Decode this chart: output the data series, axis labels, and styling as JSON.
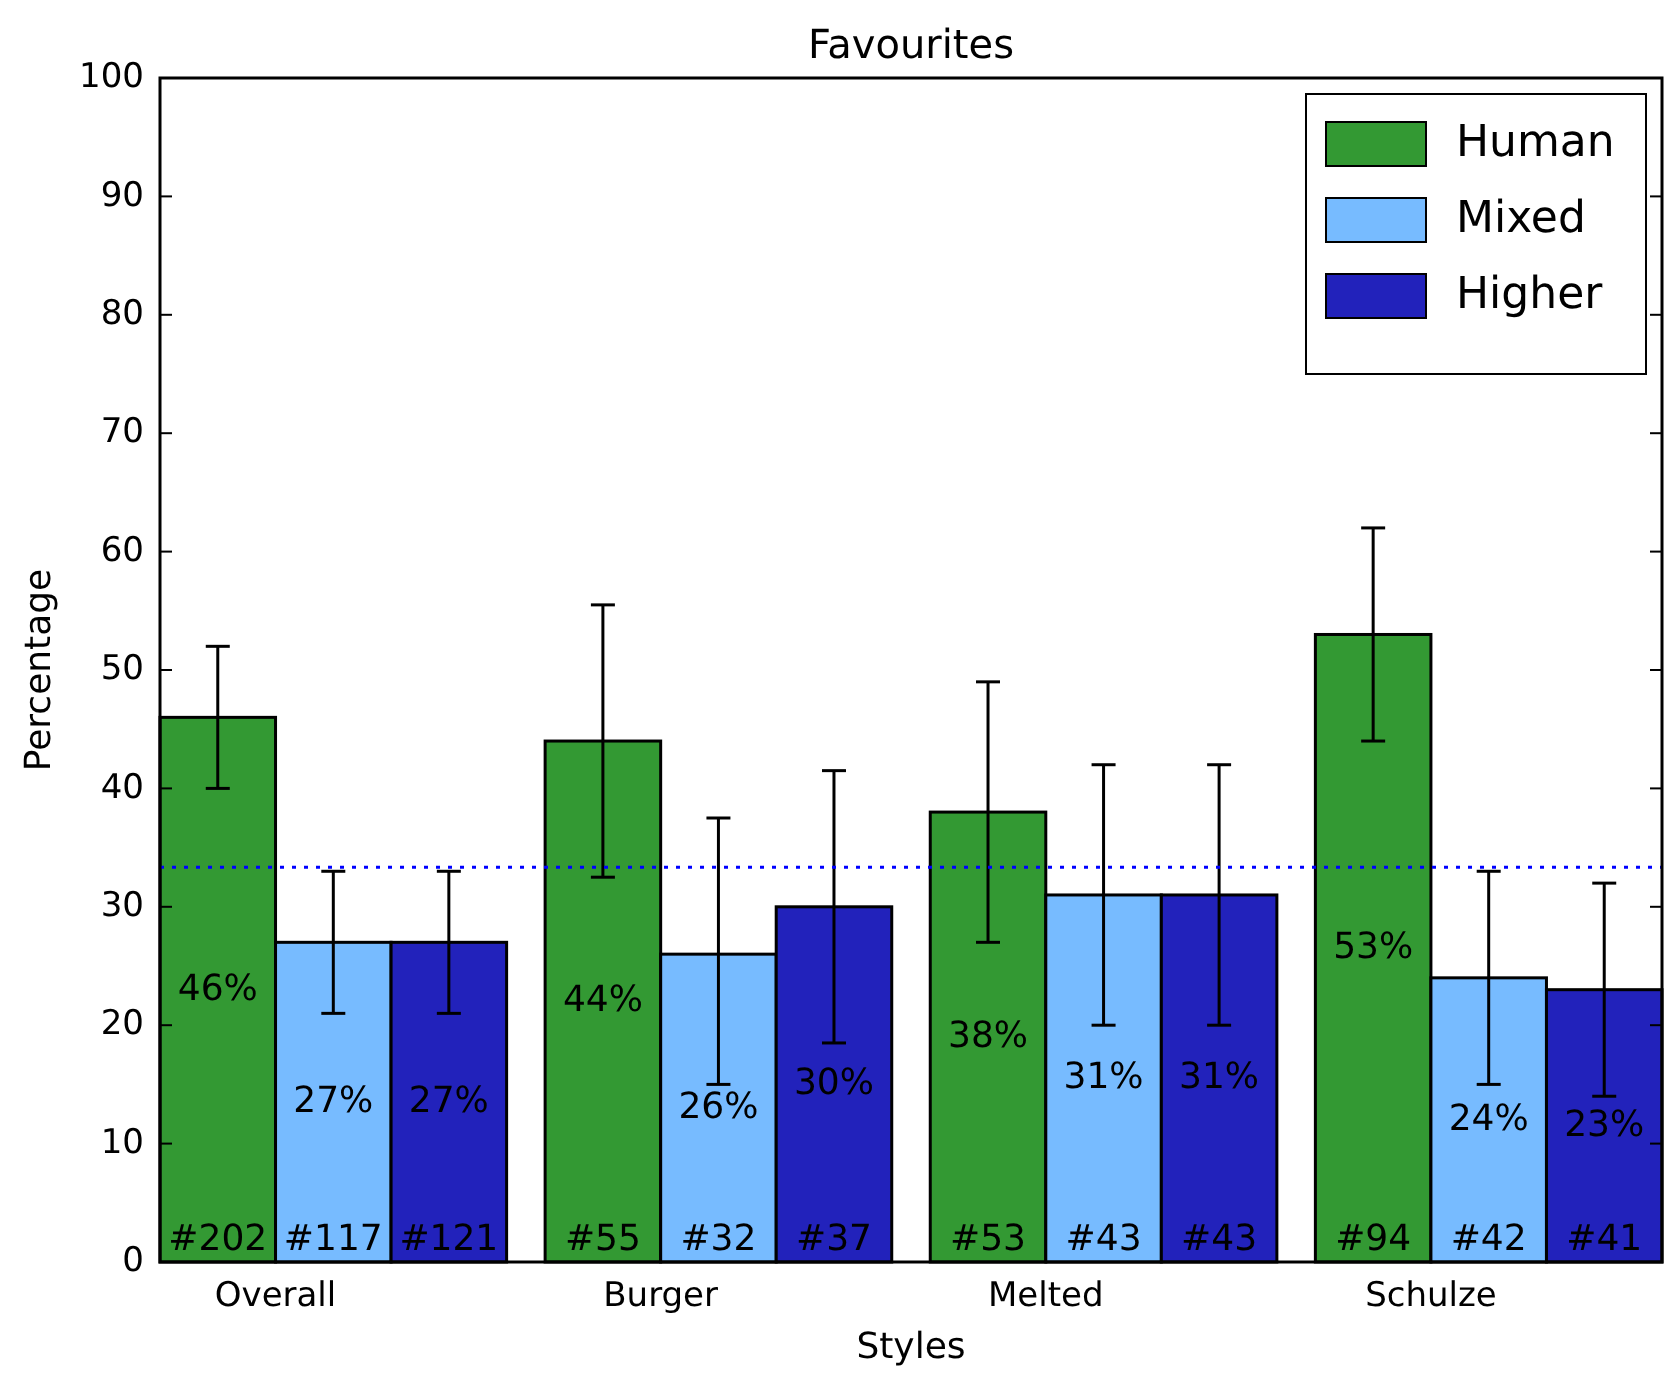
{
  "chart_data": {
    "type": "bar",
    "title": "Favourites",
    "xlabel": "Styles",
    "ylabel": "Percentage",
    "categories": [
      "Overall",
      "Burger",
      "Melted",
      "Schulze"
    ],
    "series": [
      {
        "name": "Human",
        "color": "#339933",
        "values": [
          46,
          44,
          38,
          53
        ],
        "errors": [
          [
            40,
            52
          ],
          [
            32.5,
            55.5
          ],
          [
            27,
            49
          ],
          [
            44,
            62
          ]
        ],
        "value_labels": [
          "46%",
          "44%",
          "38%",
          "53%"
        ]
      },
      {
        "name": "Mixed",
        "color": "#77bbff",
        "values": [
          27,
          26,
          31,
          24
        ],
        "errors": [
          [
            21,
            33
          ],
          [
            15,
            37.5
          ],
          [
            20,
            42
          ],
          [
            15,
            33
          ]
        ],
        "value_labels": [
          "27%",
          "26%",
          "31%",
          "24%"
        ]
      },
      {
        "name": "Higher",
        "color": "#2222bb",
        "values": [
          27,
          30,
          31,
          23
        ],
        "errors": [
          [
            21,
            33
          ],
          [
            18.5,
            41.5
          ],
          [
            20,
            42
          ],
          [
            14,
            32
          ]
        ],
        "value_labels": [
          "27%",
          "30%",
          "31%",
          "23%"
        ]
      }
    ],
    "annotations": [
      "#202",
      "#117",
      "#121",
      "#55",
      "#32",
      "#37",
      "#53",
      "#43",
      "#43",
      "#94",
      "#42",
      "#41"
    ],
    "ylim": [
      0,
      100
    ],
    "yticks": [
      0,
      10,
      20,
      30,
      40,
      50,
      60,
      70,
      80,
      90,
      100
    ],
    "ref_lines": [
      {
        "axis": "y",
        "value": 33.33,
        "color": "#0000ff",
        "line_style": "dotted"
      }
    ],
    "legend": "top right",
    "grid": false
  }
}
